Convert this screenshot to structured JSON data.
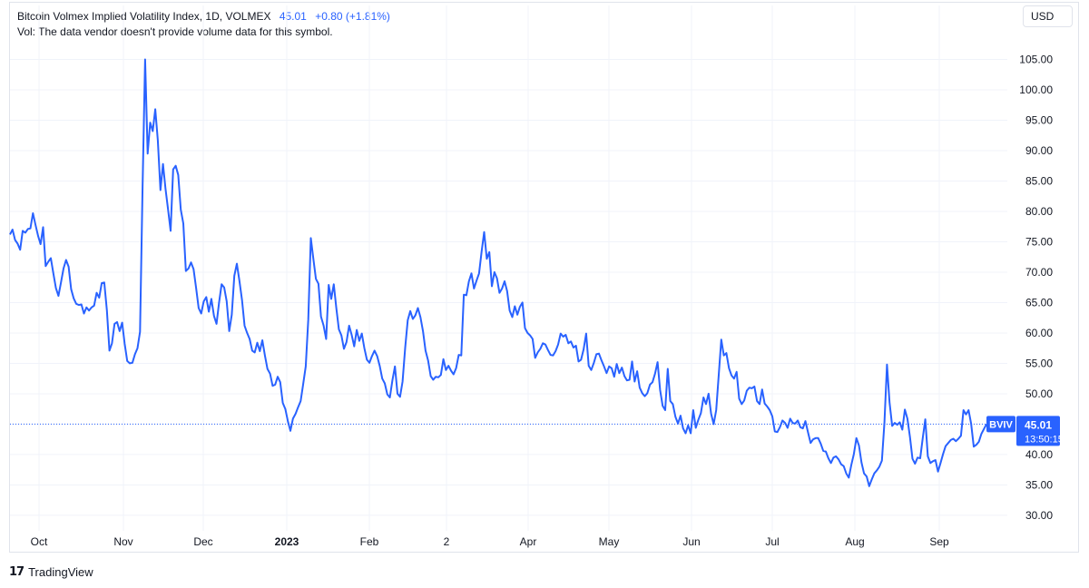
{
  "header": {
    "title": "Bitcoin Volmex Implied Volatility Index, 1D, VOLMEX",
    "last_value": "45.01",
    "change": "+0.80 (+1.81%)",
    "volume_note": "Vol: The data vendor doesn't provide volume data for this symbol."
  },
  "currency_button": "USD",
  "price_label": {
    "symbol": "BVIV",
    "value": "45.01",
    "countdown": "13:50:15"
  },
  "branding": {
    "logo_mark": "17",
    "name": "TradingView"
  },
  "colors": {
    "line": "#2962ff",
    "grid": "#f0f3fa",
    "axis_text": "#131722",
    "label_bg": "#2962ff"
  },
  "chart_data": {
    "type": "line",
    "series": [
      {
        "values": [
          76.2,
          77,
          75.3,
          74.7,
          73.7,
          76.8,
          76.5,
          77.1,
          77.2,
          79.7,
          77.8,
          76,
          74.6,
          77.4,
          71,
          71.7,
          72.3,
          69.8,
          67.4,
          66.1,
          68.3,
          70.6,
          72,
          70.9,
          67.2,
          65.7,
          64.8,
          64.6,
          64.7,
          63.2,
          64.2,
          63.7,
          64.2,
          64.5,
          66.6,
          65.8,
          68.2,
          68.3,
          63.7,
          57.1,
          58.3,
          61.5,
          61.8,
          60.3,
          61.7,
          58.2,
          55.4,
          55,
          55.1,
          56.5,
          57.5,
          60.2,
          84,
          105,
          89.5,
          94.6,
          93.2,
          96.8,
          91.7,
          83.5,
          87.8,
          83.7,
          80.3,
          76.8,
          86.9,
          87.5,
          86,
          80.3,
          78,
          70.2,
          70.6,
          71.6,
          70.5,
          67.4,
          64.1,
          63.2,
          65.2,
          65.9,
          63.5,
          65.6,
          62.8,
          61.5,
          65,
          68,
          67.5,
          65.2,
          60.3,
          63,
          69.4,
          71.4,
          68.6,
          65.4,
          61.2,
          60,
          59,
          57.1,
          56.8,
          58.4,
          57,
          58.8,
          56.3,
          54.1,
          53.3,
          51.3,
          51.5,
          52.8,
          51.9,
          48.5,
          47.5,
          45.5,
          43.9,
          45.9,
          46.7,
          47.8,
          48.8,
          51.6,
          54.5,
          62.2,
          75.6,
          72.2,
          68.9,
          68.1,
          62.7,
          61.2,
          59,
          67.9,
          65.6,
          68,
          64.1,
          60.6,
          59.6,
          57.4,
          58.5,
          61.2,
          59.7,
          57.8,
          60.5,
          58.7,
          59.9,
          57.5,
          55.6,
          55.1,
          56.2,
          57.1,
          56.2,
          54.6,
          52.5,
          51.7,
          49.9,
          49.4,
          52.2,
          54.5,
          50,
          49.5,
          52,
          57.6,
          62.1,
          63.6,
          62.3,
          62.9,
          64.1,
          62.6,
          60.3,
          57.1,
          55.5,
          52.9,
          52.3,
          52.8,
          52.7,
          53.1,
          55.7,
          53.9,
          54.6,
          53.8,
          53.2,
          54.2,
          56.4,
          56.3,
          66.3,
          66.2,
          68.5,
          69.8,
          67.3,
          68.6,
          69.8,
          73.4,
          76.6,
          72.2,
          73.3,
          67.7,
          70,
          69,
          66.6,
          67.3,
          68.5,
          66.9,
          63.7,
          62.6,
          64.4,
          63,
          64.3,
          65,
          60.8,
          60,
          59.6,
          59,
          55.9,
          56.8,
          57.4,
          58.3,
          58.1,
          57.2,
          56.4,
          56.3,
          57,
          58.1,
          59.9,
          59.4,
          59.7,
          58.3,
          58.6,
          57.6,
          57.9,
          55.3,
          55.6,
          57.3,
          59.9,
          54.6,
          53.9,
          55.1,
          56.5,
          56.6,
          55.5,
          54.5,
          53.4,
          54.5,
          54.2,
          52.8,
          54.9,
          53.4,
          54.3,
          52.9,
          52.2,
          52.3,
          55.3,
          52,
          53.7,
          51,
          50.1,
          49.6,
          50.1,
          51.5,
          51.9,
          53.3,
          55.2,
          50.6,
          48,
          47.3,
          54.1,
          48.8,
          48.3,
          46.2,
          45.1,
          46.4,
          44.3,
          43.5,
          44.8,
          43.5,
          47.3,
          44.4,
          45.7,
          46.8,
          49.4,
          48.3,
          50,
          46.7,
          45,
          47.3,
          53.1,
          58.9,
          56.3,
          56.7,
          54.2,
          53,
          52.5,
          53.6,
          49.2,
          48.3,
          48.9,
          50.5,
          51,
          50.9,
          51.2,
          48.8,
          48.3,
          50.7,
          48.4,
          47.9,
          47.3,
          46.3,
          43.8,
          43.7,
          44.5,
          45.6,
          45.2,
          44.4,
          45.9,
          45.2,
          45.1,
          45.6,
          44.5,
          44.3,
          45.5,
          43.7,
          41.9,
          42.5,
          42.7,
          42.7,
          41.8,
          40.6,
          40.5,
          39.4,
          38.6,
          39.5,
          39.7,
          39.2,
          38.4,
          38.1,
          36.9,
          36.2,
          38.3,
          40.1,
          42.7,
          41.5,
          38.7,
          36.9,
          36.4,
          34.8,
          35.9,
          36.9,
          37.4,
          38,
          39,
          45.3,
          54.8,
          48.6,
          44.7,
          45.2,
          44.9,
          45.3,
          44.1,
          47.4,
          45.9,
          42.9,
          39.3,
          38.5,
          39.5,
          39.4,
          42.7,
          45.8,
          39.7,
          38.6,
          38.9,
          39.1,
          37.2,
          38.6,
          40.1,
          41.4,
          41.9,
          42.4,
          42.6,
          42.2,
          42.6,
          43.1,
          47.3,
          46.6,
          47.3,
          45.1,
          41.3,
          41.6,
          42.1,
          43.4,
          44.2,
          45.01
        ]
      }
    ],
    "x_tick_labels": [
      "Oct",
      "Nov",
      "Dec",
      "2023",
      "Feb",
      "2",
      "Apr",
      "May",
      "Jun",
      "Jul",
      "Aug",
      "Sep"
    ],
    "y_tick_labels": [
      "105.00",
      "100.00",
      "95.00",
      "90.00",
      "85.00",
      "80.00",
      "75.00",
      "70.00",
      "65.00",
      "60.00",
      "55.00",
      "50.00",
      "45.00",
      "40.00",
      "35.00",
      "30.00"
    ],
    "ylim": [
      27.9,
      108.8
    ],
    "last_price_line": 45.01,
    "grid": true
  }
}
